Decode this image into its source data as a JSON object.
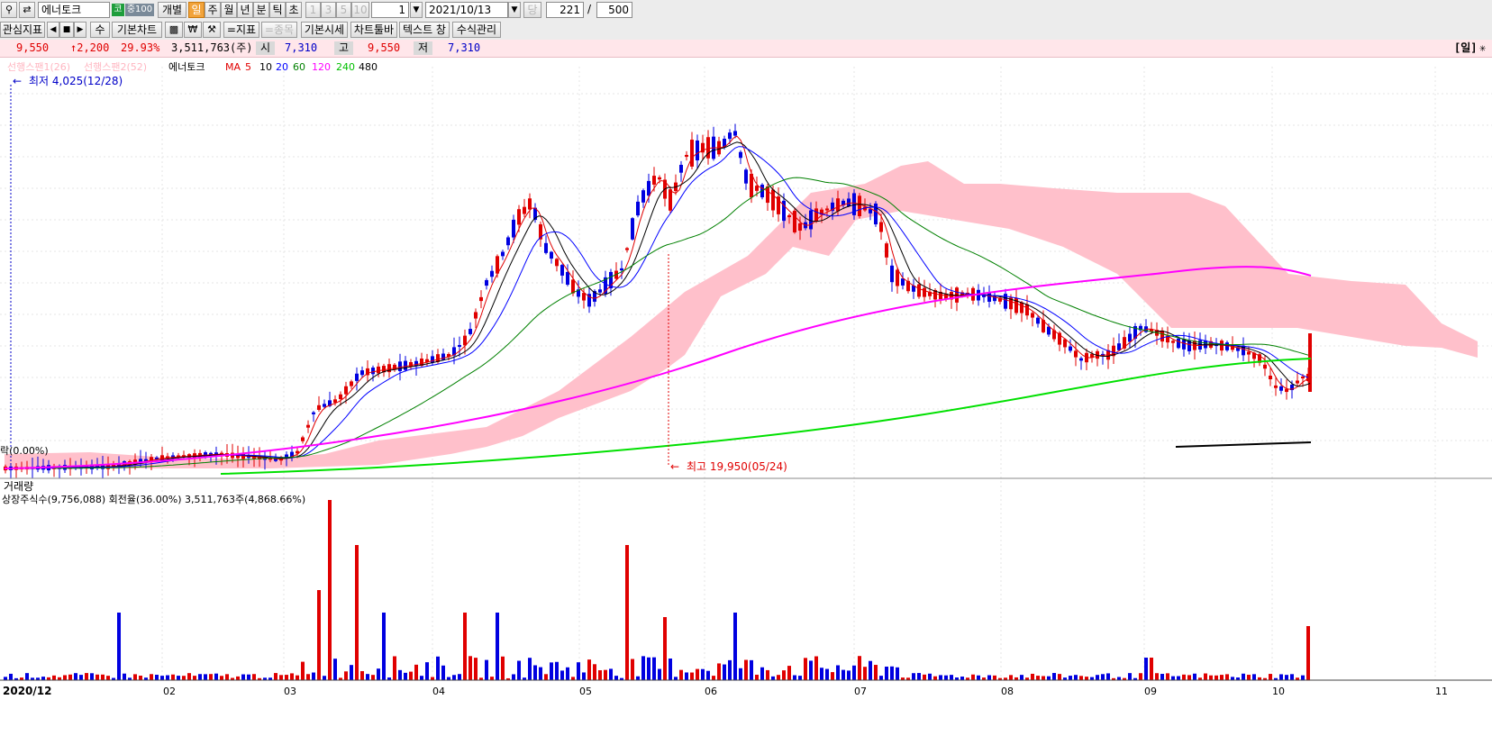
{
  "toolbar": {
    "search_icon": "magnifier-icon",
    "refresh_icon": "swap-icon",
    "stock_name": "에너토크",
    "market_badge": "코",
    "group_badge": "중100",
    "individual_label": "개별",
    "periods": [
      "일",
      "주",
      "월",
      "년",
      "분",
      "틱",
      "초"
    ],
    "active_period": "일",
    "minute_options": [
      "1",
      "3",
      "5",
      "10"
    ],
    "interval_value": "1",
    "date_value": "2021/10/13",
    "today_label": "당",
    "view_count": "221",
    "slash": "/",
    "total_count": "500"
  },
  "toolbar2": {
    "watch_indicator": "관심지표",
    "plus_label": "수",
    "basic_chart": "기본차트",
    "indicator_label": "=지표",
    "item_label": "=종목",
    "basic_quote": "기본시세",
    "chart_toolbar": "차트툴바",
    "text_label": "텍스트 창",
    "formula_label": "수식관리"
  },
  "info": {
    "price": "9,550",
    "change": "↑2,200",
    "change_pct": "29.93%",
    "volume": "3,511,763(주)",
    "open_label": "시",
    "open": "7,310",
    "high_label": "고",
    "high": "9,550",
    "low_label": "저",
    "low": "7,310",
    "period_label": "[일]"
  },
  "chart_data": {
    "type": "candlestick",
    "legend": {
      "span1": "선행스팬1(26)",
      "span2": "선행스팬2(52)",
      "stock": "에너토크",
      "ma_prefix": "MA",
      "ma_periods": [
        "5",
        "10",
        "20",
        "60",
        "120",
        "240",
        "480"
      ]
    },
    "ma_colors": [
      "#e00000",
      "#000000",
      "#0000ff",
      "#008000",
      "#ff00ff",
      "#00e000",
      "#000000"
    ],
    "low_annotation": "최저 4,025(12/28)",
    "high_annotation": "최고 19,950(05/24)",
    "baseline_label": "락(0.00%)",
    "volume_title": "거래량",
    "volume_info": "상장주식수(9,756,088) 회전율(36.00%) 3,511,763주(4,868.66%)",
    "x_labels": [
      "2020/12",
      "02",
      "03",
      "04",
      "05",
      "06",
      "07",
      "08",
      "09",
      "10",
      "11"
    ],
    "up_color": "#e00000",
    "down_color": "#0000e0",
    "cloud_color": "#ffc0cb"
  }
}
